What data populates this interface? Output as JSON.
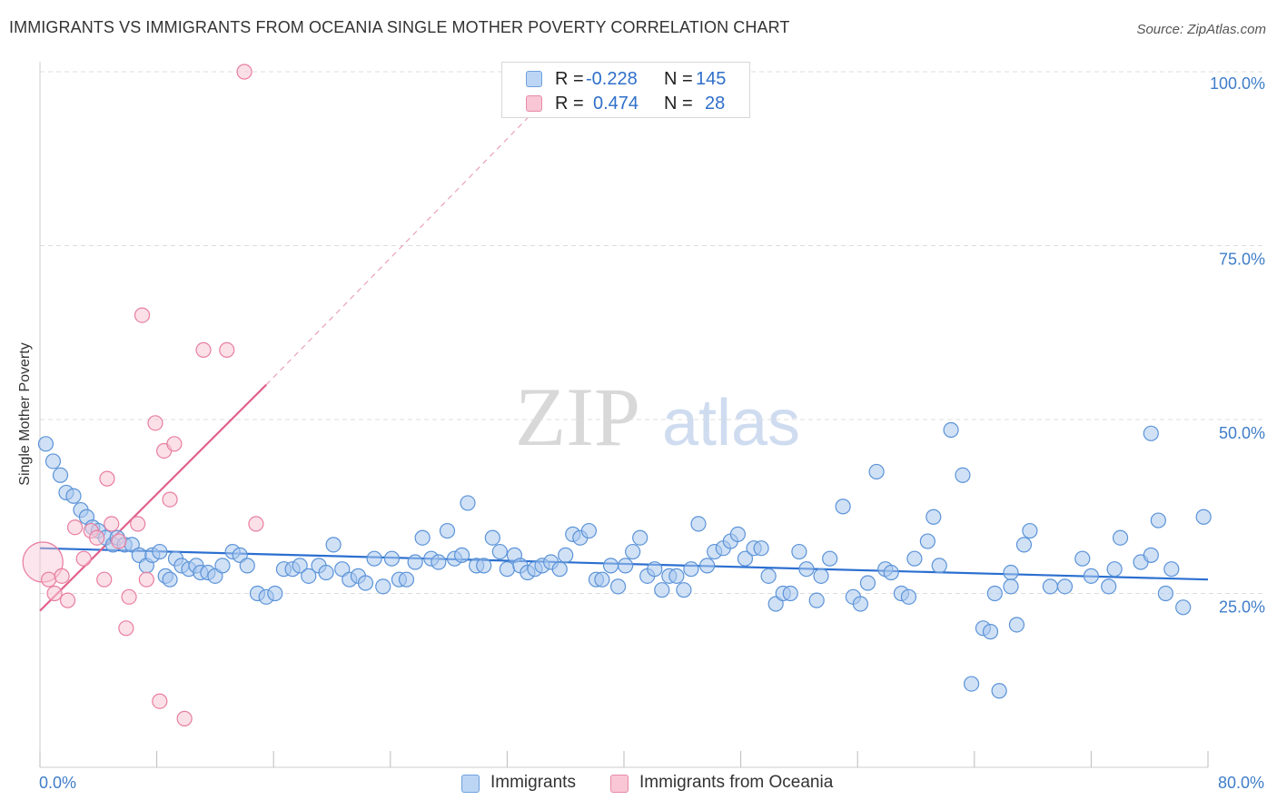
{
  "title": "IMMIGRANTS VS IMMIGRANTS FROM OCEANIA SINGLE MOTHER POVERTY CORRELATION CHART",
  "source": "Source: ZipAtlas.com",
  "watermark": {
    "zip": "ZIP",
    "atlas": "atlas"
  },
  "legend": {
    "rows": [
      {
        "r_label": "R =",
        "r_value": "-0.228",
        "n_label": "N =",
        "n_value": "145",
        "color": "#a9c8ef"
      },
      {
        "r_label": "R =",
        "r_value": "0.474",
        "n_label": "N =",
        "n_value": "28",
        "color": "#f5b8cc"
      }
    ]
  },
  "bottom_legend": [
    {
      "label": "Immigrants",
      "color": "#a9c8ef",
      "border": "#6ea0dd"
    },
    {
      "label": "Immigrants from Oceania",
      "color": "#f8c6d5",
      "border": "#e88aa8"
    }
  ],
  "colors": {
    "blue_fill": "#a9c8ef",
    "blue_stroke": "#5b93d8",
    "blue_line": "#2b6fd0",
    "pink_fill": "#f8c6d5",
    "pink_stroke": "#e87ea0",
    "pink_line": "#e0628c",
    "axis_text": "#3f7dc9",
    "grid": "#dddddd"
  },
  "chart_data": {
    "type": "scatter",
    "title": "IMMIGRANTS VS IMMIGRANTS FROM OCEANIA SINGLE MOTHER POVERTY CORRELATION CHART",
    "xlabel": "",
    "ylabel": "Single Mother Poverty",
    "xlim": [
      0,
      80
    ],
    "ylim": [
      0,
      100
    ],
    "x_tick_labels": [
      "0.0%",
      "80.0%"
    ],
    "y_ticks": [
      25,
      50,
      75,
      100
    ],
    "y_tick_labels": [
      "25.0%",
      "50.0%",
      "75.0%",
      "100.0%"
    ],
    "grid": true,
    "legend_position": "top-center",
    "series": [
      {
        "name": "Immigrants",
        "r": -0.228,
        "n": 145,
        "trend": {
          "x0": 0,
          "y0": 31.5,
          "x1": 80,
          "y1": 27.0
        },
        "points": [
          [
            0.4,
            46.5
          ],
          [
            0.9,
            44
          ],
          [
            1.4,
            42
          ],
          [
            1.8,
            39.5
          ],
          [
            2.3,
            39
          ],
          [
            2.8,
            37
          ],
          [
            3.2,
            36
          ],
          [
            3.6,
            34.5
          ],
          [
            4,
            34
          ],
          [
            4.5,
            33
          ],
          [
            5,
            32
          ],
          [
            5.3,
            33
          ],
          [
            5.8,
            32
          ],
          [
            6.3,
            32
          ],
          [
            6.8,
            30.5
          ],
          [
            7.3,
            29
          ],
          [
            7.7,
            30.5
          ],
          [
            8.2,
            31
          ],
          [
            8.6,
            27.5
          ],
          [
            8.9,
            27
          ],
          [
            9.3,
            30
          ],
          [
            9.7,
            29
          ],
          [
            10.2,
            28.5
          ],
          [
            10.7,
            29
          ],
          [
            11,
            28
          ],
          [
            11.5,
            28
          ],
          [
            12,
            27.5
          ],
          [
            12.5,
            29
          ],
          [
            13.2,
            31
          ],
          [
            13.7,
            30.5
          ],
          [
            14.2,
            29
          ],
          [
            14.9,
            25
          ],
          [
            15.5,
            24.5
          ],
          [
            16.1,
            25
          ],
          [
            16.7,
            28.5
          ],
          [
            17.3,
            28.5
          ],
          [
            17.8,
            29
          ],
          [
            18.4,
            27.5
          ],
          [
            19.1,
            29
          ],
          [
            19.6,
            28
          ],
          [
            20.1,
            32
          ],
          [
            20.7,
            28.5
          ],
          [
            21.2,
            27
          ],
          [
            21.8,
            27.5
          ],
          [
            22.3,
            26.5
          ],
          [
            22.9,
            30
          ],
          [
            23.5,
            26
          ],
          [
            24.1,
            30
          ],
          [
            24.6,
            27
          ],
          [
            25.1,
            27
          ],
          [
            25.7,
            29.5
          ],
          [
            26.2,
            33
          ],
          [
            26.8,
            30
          ],
          [
            27.3,
            29.5
          ],
          [
            27.9,
            34
          ],
          [
            28.4,
            30
          ],
          [
            28.9,
            30.5
          ],
          [
            29.3,
            38
          ],
          [
            29.9,
            29
          ],
          [
            30.4,
            29
          ],
          [
            31,
            33
          ],
          [
            31.5,
            31
          ],
          [
            32,
            28.5
          ],
          [
            32.5,
            30.5
          ],
          [
            32.9,
            29
          ],
          [
            33.4,
            28
          ],
          [
            33.9,
            28.5
          ],
          [
            34.4,
            29
          ],
          [
            35,
            29.5
          ],
          [
            35.6,
            28.5
          ],
          [
            36,
            30.5
          ],
          [
            36.5,
            33.5
          ],
          [
            37,
            33
          ],
          [
            37.6,
            34
          ],
          [
            38.1,
            27
          ],
          [
            38.5,
            27
          ],
          [
            39.1,
            29
          ],
          [
            39.6,
            26
          ],
          [
            40.1,
            29
          ],
          [
            40.6,
            31
          ],
          [
            41.1,
            33
          ],
          [
            41.6,
            27.5
          ],
          [
            42.1,
            28.5
          ],
          [
            42.6,
            25.5
          ],
          [
            43.1,
            27.5
          ],
          [
            43.6,
            27.5
          ],
          [
            44.1,
            25.5
          ],
          [
            44.6,
            28.5
          ],
          [
            45.1,
            35
          ],
          [
            45.7,
            29
          ],
          [
            46.2,
            31
          ],
          [
            46.8,
            31.5
          ],
          [
            47.3,
            32.5
          ],
          [
            47.8,
            33.5
          ],
          [
            48.3,
            30
          ],
          [
            48.9,
            31.5
          ],
          [
            49.4,
            31.5
          ],
          [
            49.9,
            27.5
          ],
          [
            50.4,
            23.5
          ],
          [
            50.9,
            25
          ],
          [
            51.4,
            25
          ],
          [
            52,
            31
          ],
          [
            52.5,
            28.5
          ],
          [
            53.2,
            24
          ],
          [
            53.5,
            27.5
          ],
          [
            54.1,
            30
          ],
          [
            55,
            37.5
          ],
          [
            55.7,
            24.5
          ],
          [
            56.2,
            23.5
          ],
          [
            56.7,
            26.5
          ],
          [
            57.3,
            42.5
          ],
          [
            57.9,
            28.5
          ],
          [
            58.3,
            28
          ],
          [
            59,
            25
          ],
          [
            59.5,
            24.5
          ],
          [
            59.9,
            30
          ],
          [
            60.8,
            32.5
          ],
          [
            61.2,
            36
          ],
          [
            61.6,
            29
          ],
          [
            62.4,
            48.5
          ],
          [
            63.2,
            42
          ],
          [
            63.8,
            12
          ],
          [
            64.6,
            20
          ],
          [
            65.1,
            19.5
          ],
          [
            65.4,
            25
          ],
          [
            65.7,
            11
          ],
          [
            66.5,
            28
          ],
          [
            66.5,
            26
          ],
          [
            66.9,
            20.5
          ],
          [
            67.4,
            32
          ],
          [
            67.8,
            34
          ],
          [
            69.2,
            26
          ],
          [
            70.2,
            26
          ],
          [
            71.4,
            30
          ],
          [
            72,
            27.5
          ],
          [
            73.2,
            26
          ],
          [
            73.6,
            28.5
          ],
          [
            74,
            33
          ],
          [
            75.4,
            29.5
          ],
          [
            76.1,
            30.5
          ],
          [
            76.1,
            48
          ],
          [
            76.6,
            35.5
          ],
          [
            77.1,
            25
          ],
          [
            77.5,
            28.5
          ],
          [
            78.3,
            23
          ],
          [
            79.7,
            36
          ]
        ]
      },
      {
        "name": "Immigrants from Oceania",
        "r": 0.474,
        "n": 28,
        "trend": {
          "x0": 0,
          "y0": 22.5,
          "x1": 15.5,
          "y1": 55.0
        },
        "trend_extension": {
          "x0": 15.5,
          "y0": 55.0,
          "x1": 36.5,
          "y1": 100
        },
        "points": [
          [
            0.2,
            29.5
          ],
          [
            0.6,
            27
          ],
          [
            1.0,
            25
          ],
          [
            1.5,
            27.5
          ],
          [
            1.9,
            24
          ],
          [
            2.4,
            34.5
          ],
          [
            3.0,
            30
          ],
          [
            3.5,
            34
          ],
          [
            3.9,
            33
          ],
          [
            4.4,
            27
          ],
          [
            4.6,
            41.5
          ],
          [
            4.9,
            35
          ],
          [
            5.4,
            32.5
          ],
          [
            5.9,
            20
          ],
          [
            6.1,
            24.5
          ],
          [
            6.7,
            35
          ],
          [
            7.0,
            65
          ],
          [
            7.3,
            27
          ],
          [
            7.9,
            49.5
          ],
          [
            8.2,
            9.5
          ],
          [
            8.5,
            45.5
          ],
          [
            8.9,
            38.5
          ],
          [
            9.2,
            46.5
          ],
          [
            9.9,
            7
          ],
          [
            11.2,
            60
          ],
          [
            12.8,
            60
          ],
          [
            14.0,
            100
          ],
          [
            14.8,
            35
          ]
        ]
      }
    ]
  }
}
